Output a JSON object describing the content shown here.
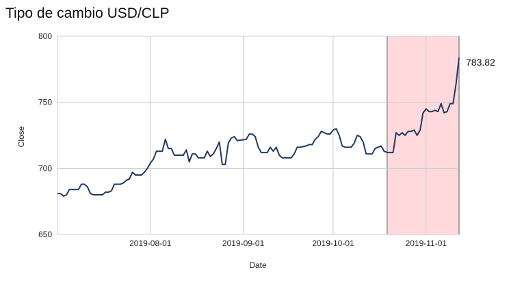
{
  "chart_data": {
    "type": "line",
    "title": "Tipo de cambio USD/CLP",
    "xlabel": "Date",
    "ylabel": "Close",
    "ylim": [
      650,
      800
    ],
    "xlim": [
      "2019-07-01",
      "2019-11-12"
    ],
    "yticks": [
      650,
      700,
      750,
      800
    ],
    "xticks": [
      "2019-08-01",
      "2019-09-01",
      "2019-10-01",
      "2019-11-01"
    ],
    "grid": true,
    "highlight": {
      "x_start": "2019-10-19",
      "x_end": "2019-11-12",
      "color": "#ffd9db"
    },
    "last_value_label": "783.82",
    "series": [
      {
        "color": "#1f3a64",
        "points": [
          [
            "2019-07-01",
            681
          ],
          [
            "2019-07-02",
            681
          ],
          [
            "2019-07-03",
            679
          ],
          [
            "2019-07-04",
            680
          ],
          [
            "2019-07-05",
            684
          ],
          [
            "2019-07-07",
            684
          ],
          [
            "2019-07-08",
            684
          ],
          [
            "2019-07-09",
            688
          ],
          [
            "2019-07-10",
            688
          ],
          [
            "2019-07-11",
            686
          ],
          [
            "2019-07-12",
            681
          ],
          [
            "2019-07-13",
            680
          ],
          [
            "2019-07-15",
            680
          ],
          [
            "2019-07-16",
            680
          ],
          [
            "2019-07-17",
            682
          ],
          [
            "2019-07-18",
            682
          ],
          [
            "2019-07-19",
            683
          ],
          [
            "2019-07-20",
            688
          ],
          [
            "2019-07-22",
            688
          ],
          [
            "2019-07-23",
            689
          ],
          [
            "2019-07-24",
            691
          ],
          [
            "2019-07-25",
            692
          ],
          [
            "2019-07-26",
            697
          ],
          [
            "2019-07-27",
            695
          ],
          [
            "2019-07-29",
            695
          ],
          [
            "2019-07-30",
            697
          ],
          [
            "2019-07-31",
            700
          ],
          [
            "2019-08-01",
            704
          ],
          [
            "2019-08-02",
            707
          ],
          [
            "2019-08-03",
            713
          ],
          [
            "2019-08-05",
            713
          ],
          [
            "2019-08-06",
            722
          ],
          [
            "2019-08-07",
            715
          ],
          [
            "2019-08-08",
            715
          ],
          [
            "2019-08-09",
            710
          ],
          [
            "2019-08-10",
            710
          ],
          [
            "2019-08-12",
            710
          ],
          [
            "2019-08-13",
            714
          ],
          [
            "2019-08-14",
            705
          ],
          [
            "2019-08-15",
            711
          ],
          [
            "2019-08-16",
            711
          ],
          [
            "2019-08-17",
            708
          ],
          [
            "2019-08-19",
            708
          ],
          [
            "2019-08-20",
            713
          ],
          [
            "2019-08-21",
            709
          ],
          [
            "2019-08-22",
            711
          ],
          [
            "2019-08-23",
            715
          ],
          [
            "2019-08-24",
            720
          ],
          [
            "2019-08-25",
            703
          ],
          [
            "2019-08-26",
            703
          ],
          [
            "2019-08-27",
            719
          ],
          [
            "2019-08-28",
            723
          ],
          [
            "2019-08-29",
            724
          ],
          [
            "2019-08-30",
            721
          ],
          [
            "2019-09-02",
            722
          ],
          [
            "2019-09-03",
            726
          ],
          [
            "2019-09-04",
            726
          ],
          [
            "2019-09-05",
            724
          ],
          [
            "2019-09-06",
            716
          ],
          [
            "2019-09-07",
            712
          ],
          [
            "2019-09-09",
            712
          ],
          [
            "2019-09-10",
            716
          ],
          [
            "2019-09-11",
            713
          ],
          [
            "2019-09-12",
            716
          ],
          [
            "2019-09-13",
            710
          ],
          [
            "2019-09-14",
            708
          ],
          [
            "2019-09-16",
            708
          ],
          [
            "2019-09-17",
            708
          ],
          [
            "2019-09-18",
            711
          ],
          [
            "2019-09-19",
            716
          ],
          [
            "2019-09-20",
            716
          ],
          [
            "2019-09-22",
            717
          ],
          [
            "2019-09-23",
            718
          ],
          [
            "2019-09-24",
            718
          ],
          [
            "2019-09-25",
            722
          ],
          [
            "2019-09-26",
            724
          ],
          [
            "2019-09-27",
            728
          ],
          [
            "2019-09-28",
            727
          ],
          [
            "2019-09-29",
            726
          ],
          [
            "2019-09-30",
            726
          ],
          [
            "2019-10-01",
            729
          ],
          [
            "2019-10-02",
            730
          ],
          [
            "2019-10-03",
            725
          ],
          [
            "2019-10-04",
            717
          ],
          [
            "2019-10-05",
            716
          ],
          [
            "2019-10-06",
            716
          ],
          [
            "2019-10-07",
            716
          ],
          [
            "2019-10-08",
            719
          ],
          [
            "2019-10-09",
            725
          ],
          [
            "2019-10-10",
            724
          ],
          [
            "2019-10-11",
            720
          ],
          [
            "2019-10-12",
            711
          ],
          [
            "2019-10-13",
            711
          ],
          [
            "2019-10-14",
            711
          ],
          [
            "2019-10-15",
            715
          ],
          [
            "2019-10-16",
            716
          ],
          [
            "2019-10-17",
            717
          ],
          [
            "2019-10-18",
            713
          ],
          [
            "2019-10-19",
            712
          ],
          [
            "2019-10-20",
            712
          ],
          [
            "2019-10-21",
            712
          ],
          [
            "2019-10-22",
            727
          ],
          [
            "2019-10-23",
            725
          ],
          [
            "2019-10-24",
            727
          ],
          [
            "2019-10-25",
            725
          ],
          [
            "2019-10-26",
            728
          ],
          [
            "2019-10-27",
            728
          ],
          [
            "2019-10-28",
            729
          ],
          [
            "2019-10-29",
            725
          ],
          [
            "2019-10-30",
            729
          ],
          [
            "2019-10-31",
            742
          ],
          [
            "2019-11-01",
            745
          ],
          [
            "2019-11-02",
            743
          ],
          [
            "2019-11-03",
            743
          ],
          [
            "2019-11-04",
            744
          ],
          [
            "2019-11-05",
            743
          ],
          [
            "2019-11-06",
            749
          ],
          [
            "2019-11-07",
            742
          ],
          [
            "2019-11-08",
            743
          ],
          [
            "2019-11-09",
            749
          ],
          [
            "2019-11-10",
            749
          ],
          [
            "2019-11-11",
            764
          ],
          [
            "2019-11-12",
            783.82
          ]
        ]
      }
    ]
  }
}
